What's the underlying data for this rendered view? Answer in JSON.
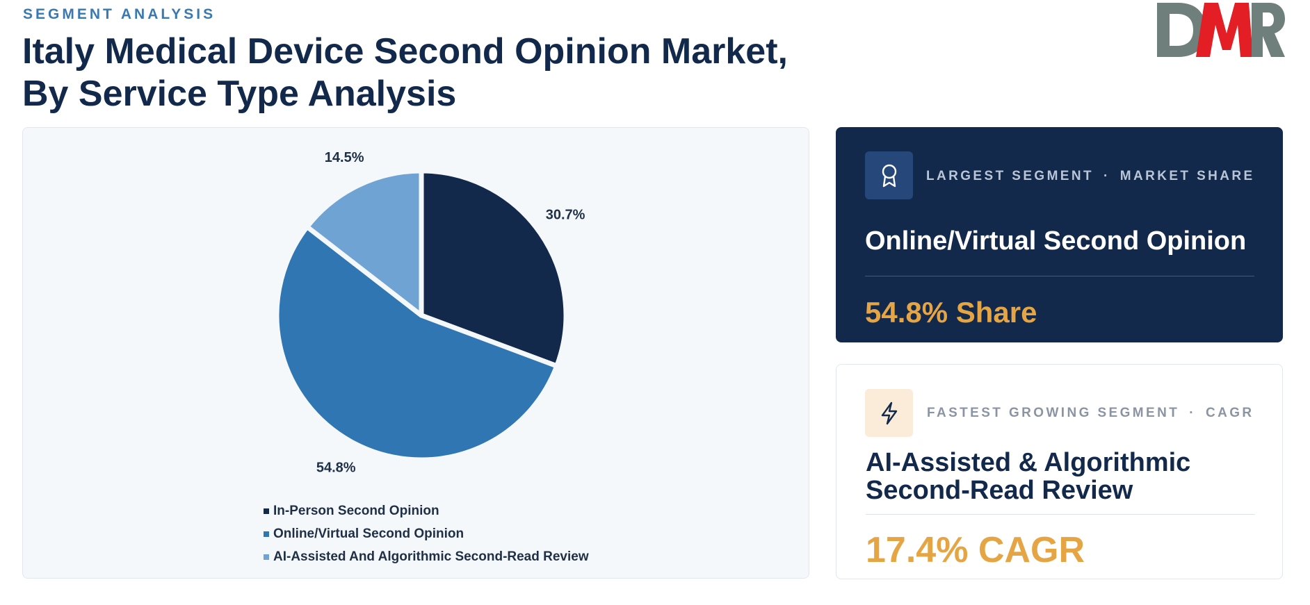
{
  "header": {
    "eyebrow": "SEGMENT ANALYSIS",
    "title_line1": "Italy Medical Device Second Opinion Market,",
    "title_line2": "By Service Type Analysis"
  },
  "brand": {
    "logo_text": "DMR",
    "colors": {
      "red": "#e31e24",
      "gray": "#6f7f7c"
    }
  },
  "chart_data": {
    "type": "pie",
    "categories": [
      "In-Person Second Opinion",
      "Online/Virtual Second Opinion",
      "AI-Assisted And Algorithmic Second-Read Review"
    ],
    "values": [
      30.7,
      54.8,
      14.5
    ],
    "value_labels": [
      "30.7%",
      "54.8%",
      "14.5%"
    ],
    "colors": [
      "#13294b",
      "#2f76b3",
      "#6fa3d3"
    ],
    "start": "12 o'clock, clockwise",
    "legend_position": "bottom"
  },
  "cards": {
    "largest": {
      "icon": "award-icon",
      "kicker_left": "LARGEST SEGMENT",
      "separator": "·",
      "kicker_right": "MARKET SHARE",
      "name": "Online/Virtual Second Opinion",
      "value": "54.8% Share"
    },
    "fastest": {
      "icon": "lightning-icon",
      "kicker_left": "FASTEST GROWING SEGMENT",
      "separator": "·",
      "kicker_right": "CAGR",
      "name": "AI-Assisted & Algorithmic Second-Read Review",
      "value": "17.4% CAGR"
    }
  },
  "colors": {
    "navy": "#13294b",
    "accent_blue": "#3a78b2",
    "accent_gold": "#e5a544"
  }
}
